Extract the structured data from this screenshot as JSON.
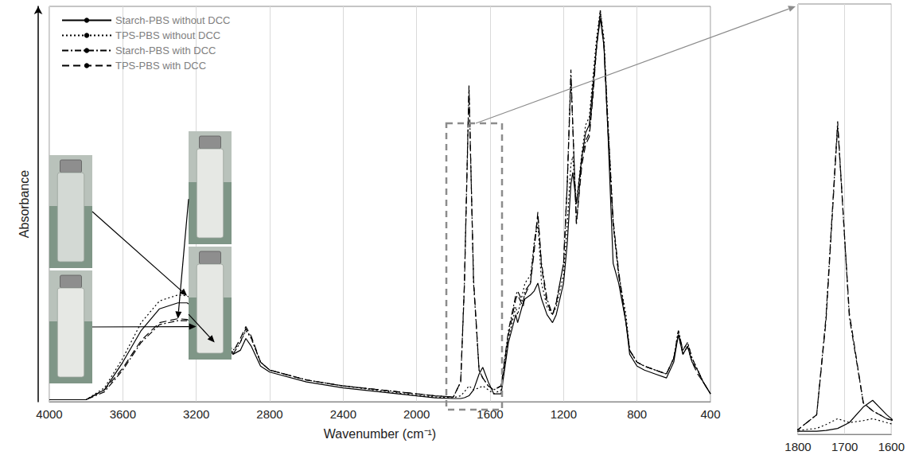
{
  "chart_data": [
    {
      "type": "line",
      "x_label": "Wavenumber (cm⁻¹)",
      "y_label": "Absorbance",
      "xlim": [
        400,
        4000
      ],
      "xticks": [
        400,
        800,
        1200,
        1600,
        2000,
        2400,
        2800,
        3200,
        3600,
        4000
      ],
      "ylim": [
        0,
        1
      ],
      "tick_labels": "x",
      "grid": true,
      "legend": "top-left",
      "x": [
        4000,
        3800,
        3700,
        3600,
        3500,
        3400,
        3300,
        3250,
        3200,
        3100,
        3000,
        2960,
        2930,
        2900,
        2850,
        2800,
        2600,
        2400,
        2200,
        2100,
        2000,
        1900,
        1800,
        1760,
        1740,
        1715,
        1690,
        1660,
        1640,
        1610,
        1580,
        1540,
        1500,
        1460,
        1450,
        1420,
        1410,
        1380,
        1360,
        1340,
        1320,
        1290,
        1260,
        1240,
        1200,
        1180,
        1160,
        1150,
        1130,
        1100,
        1080,
        1060,
        1040,
        1020,
        1000,
        980,
        960,
        930,
        900,
        860,
        840,
        800,
        760,
        700,
        640,
        600,
        575,
        550,
        525,
        500,
        470,
        440,
        400
      ],
      "series": [
        {
          "name": "Starch-PBS without DCC",
          "color": "#000000",
          "line_style": "solid",
          "values": [
            0.005,
            0.005,
            0.03,
            0.1,
            0.18,
            0.235,
            0.25,
            0.25,
            0.235,
            0.18,
            0.12,
            0.13,
            0.16,
            0.14,
            0.09,
            0.075,
            0.05,
            0.035,
            0.025,
            0.02,
            0.015,
            0.01,
            0.008,
            0.008,
            0.01,
            0.015,
            0.03,
            0.07,
            0.087,
            0.05,
            0.02,
            0.02,
            0.15,
            0.22,
            0.2,
            0.25,
            0.26,
            0.27,
            0.28,
            0.3,
            0.26,
            0.22,
            0.2,
            0.22,
            0.3,
            0.4,
            0.55,
            0.58,
            0.5,
            0.62,
            0.68,
            0.7,
            0.8,
            0.9,
            0.97,
            0.9,
            0.7,
            0.35,
            0.3,
            0.2,
            0.12,
            0.09,
            0.08,
            0.07,
            0.06,
            0.1,
            0.17,
            0.12,
            0.14,
            0.1,
            0.08,
            0.05,
            0.02
          ]
        },
        {
          "name": "TPS-PBS without DCC",
          "color": "#000000",
          "line_style": "dotted",
          "values": [
            0.005,
            0.005,
            0.035,
            0.11,
            0.2,
            0.255,
            0.27,
            0.268,
            0.25,
            0.19,
            0.13,
            0.15,
            0.18,
            0.16,
            0.1,
            0.08,
            0.055,
            0.04,
            0.028,
            0.022,
            0.016,
            0.012,
            0.01,
            0.015,
            0.025,
            0.04,
            0.03,
            0.035,
            0.04,
            0.03,
            0.02,
            0.03,
            0.16,
            0.24,
            0.22,
            0.28,
            0.3,
            0.32,
            0.4,
            0.45,
            0.3,
            0.24,
            0.22,
            0.24,
            0.32,
            0.45,
            0.6,
            0.62,
            0.5,
            0.63,
            0.7,
            0.72,
            0.82,
            0.92,
            0.99,
            0.92,
            0.72,
            0.45,
            0.32,
            0.22,
            0.13,
            0.1,
            0.09,
            0.08,
            0.07,
            0.11,
            0.18,
            0.13,
            0.15,
            0.11,
            0.08,
            0.05,
            0.02
          ]
        },
        {
          "name": "Starch-PBS with DCC",
          "color": "#000000",
          "line_style": "dashdot",
          "values": [
            0.005,
            0.005,
            0.025,
            0.08,
            0.15,
            0.195,
            0.205,
            0.205,
            0.19,
            0.15,
            0.12,
            0.15,
            0.185,
            0.16,
            0.1,
            0.08,
            0.055,
            0.04,
            0.03,
            0.025,
            0.02,
            0.015,
            0.012,
            0.05,
            0.3,
            0.8,
            0.3,
            0.08,
            0.06,
            0.04,
            0.03,
            0.04,
            0.18,
            0.27,
            0.28,
            0.25,
            0.28,
            0.3,
            0.4,
            0.47,
            0.35,
            0.26,
            0.22,
            0.25,
            0.35,
            0.55,
            0.84,
            0.7,
            0.45,
            0.62,
            0.66,
            0.68,
            0.78,
            0.9,
            0.99,
            0.9,
            0.72,
            0.46,
            0.33,
            0.2,
            0.13,
            0.1,
            0.09,
            0.08,
            0.07,
            0.11,
            0.18,
            0.13,
            0.15,
            0.11,
            0.08,
            0.05,
            0.02
          ]
        },
        {
          "name": "TPS-PBS with DCC",
          "color": "#000000",
          "line_style": "dashed",
          "values": [
            0.005,
            0.005,
            0.03,
            0.085,
            0.155,
            0.2,
            0.21,
            0.208,
            0.195,
            0.155,
            0.125,
            0.16,
            0.19,
            0.165,
            0.1,
            0.08,
            0.055,
            0.04,
            0.03,
            0.025,
            0.02,
            0.015,
            0.012,
            0.05,
            0.29,
            0.79,
            0.31,
            0.08,
            0.06,
            0.04,
            0.03,
            0.04,
            0.17,
            0.26,
            0.27,
            0.24,
            0.27,
            0.3,
            0.38,
            0.48,
            0.34,
            0.25,
            0.22,
            0.25,
            0.35,
            0.55,
            0.82,
            0.7,
            0.45,
            0.6,
            0.65,
            0.67,
            0.77,
            0.9,
            0.98,
            0.9,
            0.7,
            0.45,
            0.32,
            0.2,
            0.13,
            0.1,
            0.09,
            0.08,
            0.07,
            0.11,
            0.17,
            0.12,
            0.14,
            0.1,
            0.07,
            0.05,
            0.02
          ]
        }
      ]
    },
    {
      "type": "line",
      "xlim": [
        1600,
        1800
      ],
      "xticks": [
        1600,
        1700,
        1800
      ],
      "ylim": [
        0,
        1.1
      ],
      "tick_labels": "x",
      "grid": true
    }
  ]
}
